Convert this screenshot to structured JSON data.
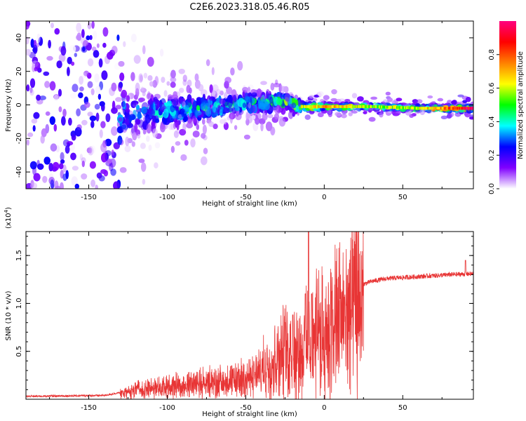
{
  "title": "C2E6.2023.318.05.46.R05",
  "chart_data": [
    {
      "type": "heatmap",
      "xlabel": "Height of straight line (km)",
      "ylabel": "Frequency (Hz)",
      "xlim": [
        -190,
        95
      ],
      "ylim": [
        -50,
        50
      ],
      "xticks": [
        -150,
        -100,
        -50,
        0,
        50
      ],
      "yticks": [
        -40,
        -20,
        0,
        20,
        40
      ],
      "colorbar": {
        "label": "Normalized spectral amplitude",
        "range": [
          0,
          1
        ],
        "ticks": [
          "0.0",
          "0.2",
          "0.4",
          "0.6",
          "0.8"
        ],
        "stops": [
          "#ffffff",
          "#8000ff",
          "#0000ff",
          "#00ffff",
          "#00ff00",
          "#ffff00",
          "#ff8000",
          "#ff0000",
          "#ff0080"
        ]
      },
      "profile": [
        {
          "x": -190,
          "center": 0,
          "spread": 50,
          "amp": 0.25
        },
        {
          "x": -135,
          "center": 0,
          "spread": 45,
          "amp": 0.25
        },
        {
          "x": -125,
          "center": -6,
          "spread": 14,
          "amp": 0.3
        },
        {
          "x": -100,
          "center": -4,
          "spread": 10,
          "amp": 0.35
        },
        {
          "x": -50,
          "center": 1,
          "spread": 7,
          "amp": 0.4
        },
        {
          "x": -25,
          "center": 2,
          "spread": 5,
          "amp": 0.45
        },
        {
          "x": -15,
          "center": -1,
          "spread": 3,
          "amp": 0.6
        },
        {
          "x": 0,
          "center": -1,
          "spread": 2,
          "amp": 0.7
        },
        {
          "x": 30,
          "center": -1,
          "spread": 2,
          "amp": 0.55
        },
        {
          "x": 60,
          "center": -2,
          "spread": 2,
          "amp": 0.6
        },
        {
          "x": 95,
          "center": -2,
          "spread": 2,
          "amp": 0.95
        }
      ]
    },
    {
      "type": "line",
      "xlabel": "Height of straight line (km)",
      "ylabel": "SNR (10 * v/v)",
      "y_multiplier": "(x10",
      "y_multiplier_exp": "4",
      "y_multiplier_close": ")",
      "xlim": [
        -190,
        95
      ],
      "ylim": [
        0,
        1.75
      ],
      "xticks": [
        -150,
        -100,
        -50,
        0,
        50
      ],
      "yticks": [
        0.5,
        1.0,
        1.5
      ],
      "ytick_labels": [
        "0.5",
        "1.0",
        "1.5"
      ],
      "color": "#e83535",
      "envelope": [
        {
          "x": -190,
          "y": 0.02
        },
        {
          "x": -140,
          "y": 0.03
        },
        {
          "x": -130,
          "y": 0.06
        },
        {
          "x": -120,
          "y": 0.12
        },
        {
          "x": -100,
          "y": 0.16
        },
        {
          "x": -80,
          "y": 0.2
        },
        {
          "x": -60,
          "y": 0.22
        },
        {
          "x": -45,
          "y": 0.28
        },
        {
          "x": -35,
          "y": 0.4
        },
        {
          "x": -30,
          "y": 0.52
        },
        {
          "x": -20,
          "y": 0.6
        },
        {
          "x": -15,
          "y": 0.58
        },
        {
          "x": -10,
          "y": 0.66
        },
        {
          "x": -5,
          "y": 0.74
        },
        {
          "x": 0,
          "y": 0.78
        },
        {
          "x": 5,
          "y": 0.86
        },
        {
          "x": 10,
          "y": 0.95
        },
        {
          "x": 15,
          "y": 1.05
        },
        {
          "x": 20,
          "y": 1.14
        },
        {
          "x": 25,
          "y": 1.2
        },
        {
          "x": 30,
          "y": 1.23
        },
        {
          "x": 40,
          "y": 1.26
        },
        {
          "x": 60,
          "y": 1.28
        },
        {
          "x": 80,
          "y": 1.3
        },
        {
          "x": 95,
          "y": 1.31
        }
      ],
      "spikes": [
        {
          "x": -10,
          "y": 1.75
        },
        {
          "x": -8,
          "y": 1.1
        },
        {
          "x": -12,
          "y": 1.1
        },
        {
          "x": -20,
          "y": 0.88
        },
        {
          "x": -25,
          "y": 0.8
        },
        {
          "x": -5,
          "y": 1.1
        },
        {
          "x": 5,
          "y": 1.12
        },
        {
          "x": 10,
          "y": 1.05
        },
        {
          "x": 90,
          "y": 1.45
        }
      ]
    }
  ]
}
